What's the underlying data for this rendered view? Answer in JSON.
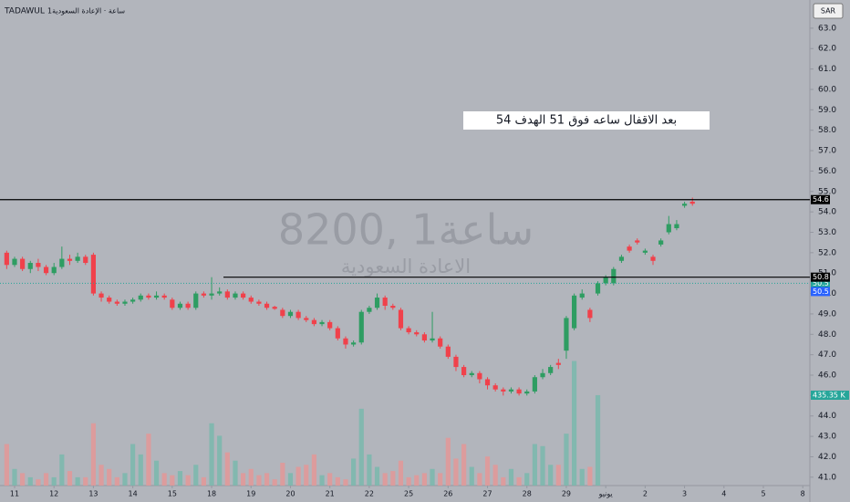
{
  "chart_data": {
    "type": "candlestick",
    "source": "TADAWUL",
    "interval_label": "1ساعة · الإعادة السعودية",
    "watermark": "8200, 1ساعة",
    "watermark_subtitle": "الاعادة السعودية",
    "annotation": "بعد الاقفال ساعه فوق 51 الهدف  54",
    "currency": "SAR",
    "up_color": "#2e9d62",
    "down_color": "#f0414b",
    "volume_up_color": "#79b8ad",
    "volume_down_color": "#e39898",
    "xlim": [
      -1.85,
      100.9
    ],
    "xticks": [
      {
        "value": 0,
        "label": "11"
      },
      {
        "value": 5,
        "label": "12"
      },
      {
        "value": 10,
        "label": "13"
      },
      {
        "value": 15,
        "label": "14"
      },
      {
        "value": 20,
        "label": "15"
      },
      {
        "value": 25,
        "label": "18"
      },
      {
        "value": 30,
        "label": "19"
      },
      {
        "value": 35,
        "label": "20"
      },
      {
        "value": 40,
        "label": "21"
      },
      {
        "value": 45,
        "label": "22"
      },
      {
        "value": 50,
        "label": "25"
      },
      {
        "value": 55,
        "label": "26"
      },
      {
        "value": 60,
        "label": "27"
      },
      {
        "value": 65,
        "label": "28"
      },
      {
        "value": 70,
        "label": "29"
      },
      {
        "value": 75,
        "label": "يونيو"
      },
      {
        "value": 80,
        "label": "2"
      },
      {
        "value": 85,
        "label": "3"
      },
      {
        "value": 90,
        "label": "4"
      },
      {
        "value": 95,
        "label": "5"
      },
      {
        "value": 100,
        "label": "8"
      }
    ],
    "ylim": [
      40.5,
      63.8
    ],
    "yticks": [
      {
        "value": 41,
        "label": "41.0"
      },
      {
        "value": 42,
        "label": "42.0"
      },
      {
        "value": 43,
        "label": "43.0"
      },
      {
        "value": 44,
        "label": "44.0"
      },
      {
        "value": 45,
        "label": "45.0"
      },
      {
        "value": 46,
        "label": "46.0"
      },
      {
        "value": 47,
        "label": "47.0"
      },
      {
        "value": 48,
        "label": "48.0"
      },
      {
        "value": 49,
        "label": "49.0"
      },
      {
        "value": 50,
        "label": "50.0"
      },
      {
        "value": 51,
        "label": "51.0"
      },
      {
        "value": 52,
        "label": "52.0"
      },
      {
        "value": 53,
        "label": "53.0"
      },
      {
        "value": 54,
        "label": "54.0"
      },
      {
        "value": 55,
        "label": "55.0"
      },
      {
        "value": 56,
        "label": "56.0"
      },
      {
        "value": 57,
        "label": "57.0"
      },
      {
        "value": 58,
        "label": "58.0"
      },
      {
        "value": 59,
        "label": "59.0"
      },
      {
        "value": 60,
        "label": "60.0"
      },
      {
        "value": 61,
        "label": "61.0"
      },
      {
        "value": 62,
        "label": "62.0"
      },
      {
        "value": 63,
        "label": "63.0"
      }
    ],
    "volume_lim": [
      0,
      1020
    ],
    "hlines": [
      {
        "value": 54.6,
        "label": "54.6",
        "from": -1.85
      },
      {
        "value": 50.8,
        "label": "50.8",
        "from": 26.5
      }
    ],
    "price_labels": [
      {
        "value": 50.5,
        "label": "50.5",
        "color": "#26a69a"
      },
      {
        "value": 50.5,
        "label": "50.5",
        "color": "#2962ff"
      }
    ],
    "volume_label": {
      "value": 435.35,
      "label": "435.35 K"
    },
    "x": [
      -1,
      0,
      1,
      2,
      3,
      4,
      5,
      6,
      7,
      8,
      9,
      10,
      11,
      12,
      13,
      14,
      15,
      16,
      17,
      18,
      19,
      20,
      21,
      22,
      23,
      24,
      25,
      26,
      27,
      28,
      29,
      30,
      31,
      32,
      33,
      34,
      35,
      36,
      37,
      38,
      39,
      40,
      41,
      42,
      43,
      44,
      45,
      46,
      47,
      48,
      49,
      50,
      51,
      52,
      53,
      54,
      55,
      56,
      57,
      58,
      59,
      60,
      61,
      62,
      63,
      64,
      65,
      66,
      67,
      68,
      69,
      70,
      71,
      72,
      73,
      74,
      75,
      76,
      77,
      78,
      79,
      80,
      81,
      82,
      83,
      84,
      85,
      86
    ],
    "open": [
      52.0,
      51.4,
      51.7,
      51.2,
      51.5,
      51.3,
      51.0,
      51.3,
      51.7,
      51.6,
      51.8,
      51.9,
      50.0,
      49.8,
      49.6,
      49.5,
      49.6,
      49.7,
      49.9,
      49.8,
      49.9,
      49.7,
      49.3,
      49.5,
      49.3,
      50.0,
      49.9,
      50.0,
      50.1,
      49.8,
      50.0,
      49.8,
      49.6,
      49.5,
      49.35,
      49.2,
      48.9,
      49.1,
      48.8,
      48.7,
      48.5,
      48.6,
      48.3,
      47.8,
      47.5,
      47.6,
      49.1,
      49.3,
      49.8,
      49.4,
      49.2,
      48.3,
      48.1,
      48.0,
      47.7,
      47.8,
      47.4,
      46.9,
      46.4,
      46.0,
      46.1,
      45.8,
      45.5,
      45.3,
      45.2,
      45.3,
      45.1,
      45.2,
      45.9,
      46.1,
      46.6,
      47.2,
      48.3,
      49.8,
      49.2,
      50.0,
      50.5,
      50.5,
      51.6,
      52.3,
      52.6,
      52.0,
      51.8,
      52.4,
      53.0,
      53.2,
      54.3,
      54.5
    ],
    "high": [
      52.1,
      51.8,
      51.8,
      51.6,
      51.7,
      51.4,
      51.5,
      52.3,
      51.9,
      52.0,
      51.9,
      52.0,
      50.1,
      49.9,
      49.7,
      49.7,
      49.8,
      50.0,
      50.0,
      50.1,
      50.0,
      49.8,
      49.6,
      49.6,
      50.1,
      50.1,
      50.8,
      50.3,
      50.2,
      50.1,
      50.1,
      49.9,
      49.7,
      49.6,
      49.4,
      49.3,
      49.2,
      49.2,
      48.9,
      48.8,
      48.7,
      48.7,
      48.4,
      47.9,
      47.7,
      49.2,
      49.4,
      50.0,
      49.9,
      49.5,
      49.3,
      48.4,
      48.2,
      48.1,
      49.1,
      47.9,
      47.5,
      47.0,
      46.5,
      46.2,
      46.2,
      45.9,
      45.6,
      45.4,
      45.4,
      45.4,
      45.3,
      46.0,
      46.3,
      46.5,
      46.8,
      48.9,
      50.0,
      50.2,
      49.3,
      50.6,
      50.9,
      51.3,
      51.9,
      52.4,
      52.7,
      52.2,
      51.9,
      52.7,
      53.8,
      53.6,
      54.5,
      54.7
    ],
    "low": [
      51.2,
      51.3,
      51.1,
      51.0,
      51.1,
      50.9,
      50.9,
      51.2,
      51.4,
      51.5,
      51.4,
      49.9,
      49.6,
      49.5,
      49.4,
      49.4,
      49.5,
      49.6,
      49.7,
      49.7,
      49.7,
      49.2,
      49.2,
      49.2,
      49.2,
      49.8,
      49.7,
      49.9,
      49.7,
      49.7,
      49.7,
      49.5,
      49.4,
      49.2,
      49.2,
      48.8,
      48.8,
      48.7,
      48.6,
      48.4,
      48.4,
      48.2,
      47.7,
      47.3,
      47.4,
      47.5,
      49.0,
      49.2,
      49.2,
      49.2,
      48.2,
      48.0,
      47.9,
      47.6,
      47.6,
      47.3,
      46.8,
      46.2,
      45.9,
      45.9,
      45.6,
      45.3,
      45.2,
      45.0,
      45.1,
      45.0,
      45.0,
      45.1,
      45.8,
      46.0,
      46.3,
      46.8,
      48.2,
      49.7,
      48.6,
      49.9,
      50.4,
      50.4,
      51.5,
      52.0,
      52.4,
      51.9,
      51.4,
      52.3,
      52.9,
      53.1,
      54.2,
      54.3
    ],
    "close": [
      51.4,
      51.7,
      51.2,
      51.5,
      51.3,
      51.0,
      51.3,
      51.7,
      51.6,
      51.8,
      51.5,
      50.0,
      49.8,
      49.6,
      49.5,
      49.6,
      49.7,
      49.9,
      49.8,
      49.9,
      49.8,
      49.3,
      49.5,
      49.3,
      50.0,
      49.9,
      50.0,
      50.1,
      49.8,
      50.0,
      49.8,
      49.6,
      49.5,
      49.3,
      49.25,
      48.9,
      49.1,
      48.8,
      48.7,
      48.5,
      48.6,
      48.3,
      47.8,
      47.5,
      47.6,
      49.1,
      49.3,
      49.8,
      49.4,
      49.3,
      48.3,
      48.1,
      48.0,
      47.7,
      47.8,
      47.4,
      46.9,
      46.4,
      46.0,
      46.1,
      45.8,
      45.5,
      45.3,
      45.2,
      45.3,
      45.1,
      45.2,
      45.9,
      46.1,
      46.4,
      46.5,
      48.8,
      49.9,
      50.0,
      48.8,
      50.5,
      50.8,
      51.2,
      51.8,
      52.1,
      52.5,
      52.1,
      51.6,
      52.6,
      53.4,
      53.4,
      54.4,
      54.4
    ],
    "volume": [
      200,
      80,
      60,
      40,
      30,
      60,
      40,
      150,
      70,
      40,
      40,
      300,
      100,
      80,
      40,
      60,
      200,
      150,
      250,
      120,
      60,
      50,
      70,
      50,
      100,
      40,
      300,
      240,
      160,
      120,
      60,
      80,
      50,
      60,
      30,
      110,
      60,
      90,
      100,
      150,
      50,
      60,
      40,
      30,
      130,
      370,
      150,
      90,
      60,
      70,
      120,
      40,
      50,
      60,
      80,
      60,
      230,
      130,
      200,
      90,
      60,
      140,
      100,
      40,
      80,
      40,
      60,
      200,
      190,
      100,
      100,
      250,
      600,
      80,
      90,
      435.35,
      null,
      null,
      null,
      null,
      null,
      null,
      null,
      null,
      null,
      null,
      null,
      null
    ]
  }
}
